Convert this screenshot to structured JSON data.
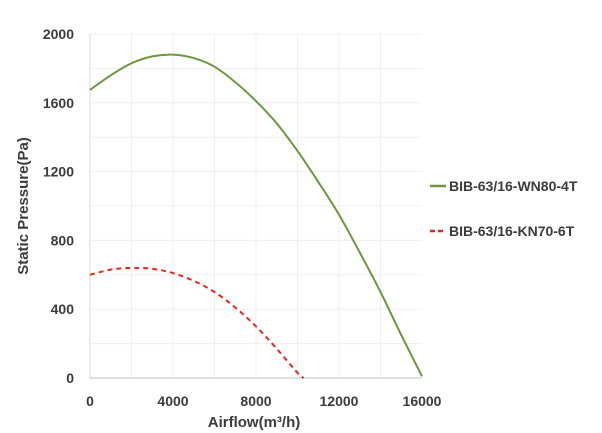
{
  "chart_data": {
    "type": "line",
    "xlabel": "Airflow(m³/h)",
    "ylabel": "Static Pressure(Pa)",
    "xlim": [
      0,
      16000
    ],
    "ylim": [
      0,
      2000
    ],
    "xticks": [
      0,
      4000,
      8000,
      12000,
      16000
    ],
    "yticks": [
      0,
      400,
      800,
      1200,
      1600,
      2000
    ],
    "xtick_labels": [
      "0",
      "4000",
      "8000",
      "12000",
      "16000"
    ],
    "ytick_labels": [
      "0",
      "400",
      "800",
      "1200",
      "1600",
      "2000"
    ],
    "grid": true,
    "legend_position": "right",
    "series": [
      {
        "name": "BIB-63/16-WN80-4T",
        "color": "#70953f",
        "style": "solid",
        "x": [
          0,
          1000,
          2000,
          3000,
          4000,
          5000,
          6000,
          7000,
          8000,
          9000,
          10000,
          11000,
          12000,
          13000,
          14000,
          15000,
          16000
        ],
        "y": [
          1675,
          1760,
          1830,
          1870,
          1880,
          1860,
          1810,
          1720,
          1610,
          1480,
          1320,
          1140,
          950,
          730,
          500,
          250,
          10
        ]
      },
      {
        "name": "BIB-63/16-KN70-6T",
        "color": "#e8261c",
        "style": "dashed",
        "x": [
          0,
          1000,
          2000,
          3000,
          4000,
          5000,
          6000,
          7000,
          8000,
          9000,
          10000,
          10300
        ],
        "y": [
          600,
          630,
          640,
          635,
          610,
          565,
          500,
          410,
          300,
          170,
          30,
          0
        ]
      }
    ]
  }
}
